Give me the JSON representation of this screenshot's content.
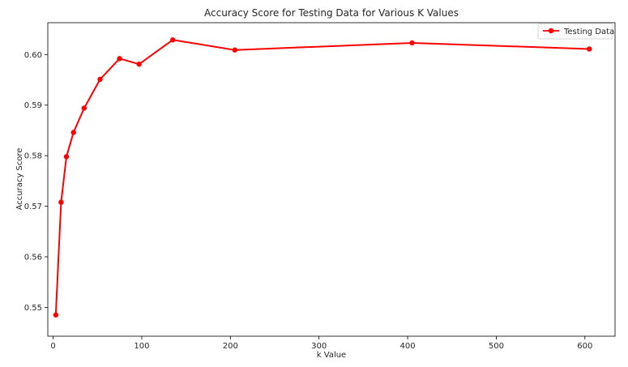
{
  "chart_data": {
    "type": "line",
    "title": "Accuracy Score for Testing Data for Various K Values",
    "xlabel": "k Value",
    "ylabel": "Accuracy Score",
    "xlim": [
      -6,
      634
    ],
    "ylim": [
      0.5443,
      0.6063
    ],
    "x_ticks": [
      0,
      100,
      200,
      300,
      400,
      500,
      600
    ],
    "x_tick_labels": [
      "0",
      "100",
      "200",
      "300",
      "400",
      "500",
      "600"
    ],
    "y_ticks": [
      0.55,
      0.56,
      0.57,
      0.58,
      0.59,
      0.6
    ],
    "y_tick_labels": [
      "0.55",
      "0.56",
      "0.57",
      "0.58",
      "0.59",
      "0.60"
    ],
    "grid": false,
    "legend_position": "top-right",
    "series": [
      {
        "name": "Testing Data",
        "color": "#ff0000",
        "marker": "circle",
        "x": [
          3,
          9,
          15,
          23,
          35,
          53,
          75,
          97,
          135,
          205,
          405,
          605
        ],
        "y": [
          0.5485,
          0.5708,
          0.5798,
          0.5846,
          0.5894,
          0.5951,
          0.5992,
          0.5981,
          0.6029,
          0.6009,
          0.6023,
          0.6011
        ]
      }
    ]
  }
}
